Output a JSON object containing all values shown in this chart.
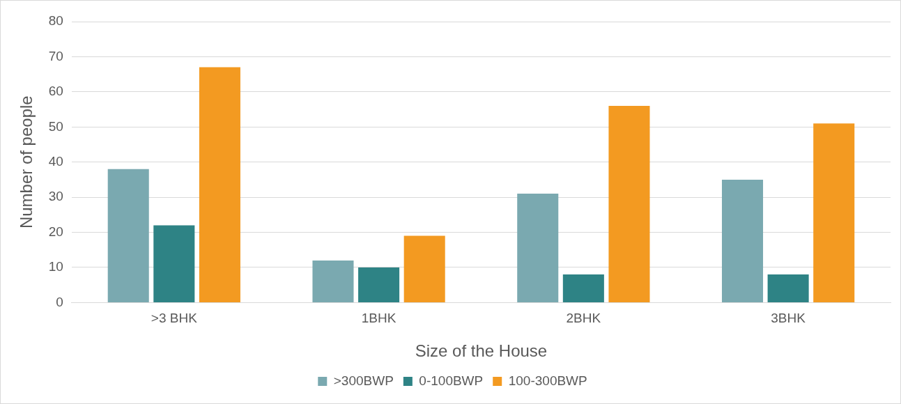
{
  "chart_data": {
    "type": "bar",
    "xlabel": "Size of the House",
    "ylabel": "Number of people",
    "categories": [
      ">3 BHK",
      "1BHK",
      "2BHK",
      "3BHK"
    ],
    "series": [
      {
        "name": ">300BWP",
        "color": "#7aa9b0",
        "values": [
          38,
          12,
          31,
          35
        ]
      },
      {
        "name": "0-100BWP",
        "color": "#2e8385",
        "values": [
          22,
          10,
          8,
          8
        ]
      },
      {
        "name": "100-300BWP",
        "color": "#f39a21",
        "values": [
          67,
          19,
          56,
          51
        ]
      }
    ],
    "ylim": [
      0,
      80
    ],
    "yticks": [
      0,
      10,
      20,
      30,
      40,
      50,
      60,
      70,
      80
    ],
    "grid": "y",
    "legend": "bottom"
  }
}
